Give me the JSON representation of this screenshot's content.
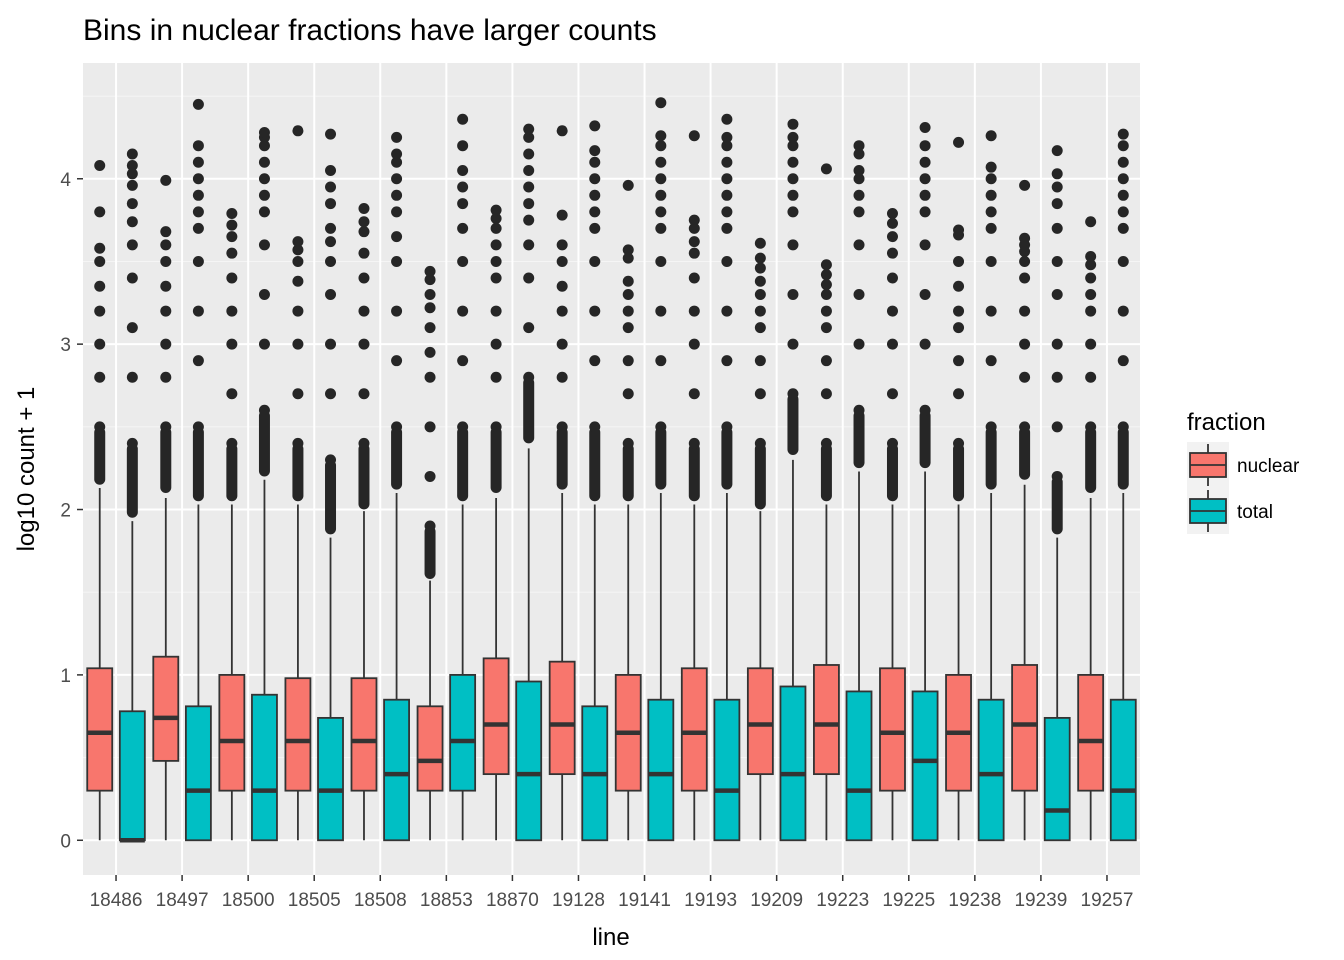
{
  "chart_data": {
    "type": "boxplot",
    "title": "Bins in nuclear fractions have larger counts",
    "xlabel": "line",
    "ylabel": "log10 count + 1",
    "ylim": [
      -0.21,
      4.7
    ],
    "yticks": [
      0,
      1,
      2,
      3,
      4
    ],
    "grid": true,
    "legend": {
      "title": "fraction",
      "position": "right",
      "entries": [
        {
          "name": "nuclear",
          "color": "#F8766D"
        },
        {
          "name": "total",
          "color": "#00BFC4"
        }
      ]
    },
    "categories": [
      "18486",
      "18497",
      "18500",
      "18505",
      "18508",
      "18853",
      "18870",
      "19128",
      "19141",
      "19193",
      "19209",
      "19223",
      "19225",
      "19238",
      "19239",
      "19257"
    ],
    "series": [
      {
        "name": "nuclear",
        "color": "#F8766D",
        "boxes": [
          {
            "min": 0,
            "q1": 0.3,
            "median": 0.65,
            "q3": 1.04,
            "whisker_high": 2.13,
            "outlier_start": 2.15,
            "outliers": [
              2.5,
              2.8,
              3.0,
              3.2,
              3.35,
              3.5,
              3.58,
              3.8,
              4.08
            ]
          },
          {
            "min": 0,
            "q1": 0.48,
            "median": 0.74,
            "q3": 1.11,
            "whisker_high": 2.07,
            "outlier_start": 2.1,
            "outliers": [
              2.5,
              2.8,
              3.0,
              3.2,
              3.35,
              3.5,
              3.6,
              3.68,
              3.99
            ]
          },
          {
            "min": 0,
            "q1": 0.3,
            "median": 0.6,
            "q3": 1.0,
            "whisker_high": 2.03,
            "outlier_start": 2.05,
            "outliers": [
              2.4,
              2.7,
              3.0,
              3.2,
              3.4,
              3.55,
              3.65,
              3.72,
              3.79
            ]
          },
          {
            "min": 0,
            "q1": 0.3,
            "median": 0.6,
            "q3": 0.98,
            "whisker_high": 2.03,
            "outlier_start": 2.05,
            "outliers": [
              2.4,
              2.7,
              3.0,
              3.2,
              3.38,
              3.5,
              3.57,
              3.62,
              4.29
            ]
          },
          {
            "min": 0,
            "q1": 0.3,
            "median": 0.6,
            "q3": 0.98,
            "whisker_high": 1.99,
            "outlier_start": 2.0,
            "outliers": [
              2.4,
              2.7,
              3.0,
              3.2,
              3.4,
              3.55,
              3.68,
              3.74,
              3.82
            ]
          },
          {
            "min": 0,
            "q1": 0.3,
            "median": 0.48,
            "q3": 0.81,
            "whisker_high": 1.57,
            "outlier_start": 1.58,
            "outliers": [
              1.9,
              2.2,
              2.5,
              2.8,
              2.95,
              3.1,
              3.22,
              3.3,
              3.39,
              3.44
            ]
          },
          {
            "min": 0,
            "q1": 0.4,
            "median": 0.7,
            "q3": 1.1,
            "whisker_high": 2.07,
            "outlier_start": 2.1,
            "outliers": [
              2.5,
              2.8,
              3.0,
              3.2,
              3.4,
              3.5,
              3.6,
              3.7,
              3.76,
              3.81
            ]
          },
          {
            "min": 0,
            "q1": 0.4,
            "median": 0.7,
            "q3": 1.08,
            "whisker_high": 2.1,
            "outlier_start": 2.12,
            "outliers": [
              2.5,
              2.8,
              3.0,
              3.2,
              3.35,
              3.5,
              3.6,
              3.78,
              4.29
            ]
          },
          {
            "min": 0,
            "q1": 0.3,
            "median": 0.65,
            "q3": 1.0,
            "whisker_high": 2.03,
            "outlier_start": 2.05,
            "outliers": [
              2.4,
              2.7,
              2.9,
              3.1,
              3.2,
              3.3,
              3.38,
              3.52,
              3.57,
              3.96
            ]
          },
          {
            "min": 0,
            "q1": 0.3,
            "median": 0.65,
            "q3": 1.04,
            "whisker_high": 2.03,
            "outlier_start": 2.05,
            "outliers": [
              2.4,
              2.7,
              3.0,
              3.2,
              3.4,
              3.55,
              3.62,
              3.7,
              3.75,
              4.26
            ]
          },
          {
            "min": 0,
            "q1": 0.4,
            "median": 0.7,
            "q3": 1.04,
            "whisker_high": 1.99,
            "outlier_start": 2.0,
            "outliers": [
              2.4,
              2.7,
              2.9,
              3.1,
              3.2,
              3.3,
              3.38,
              3.46,
              3.52,
              3.61
            ]
          },
          {
            "min": 0,
            "q1": 0.4,
            "median": 0.7,
            "q3": 1.06,
            "whisker_high": 2.03,
            "outlier_start": 2.05,
            "outliers": [
              2.4,
              2.7,
              2.9,
              3.1,
              3.2,
              3.3,
              3.36,
              3.42,
              3.48,
              4.06
            ]
          },
          {
            "min": 0,
            "q1": 0.3,
            "median": 0.65,
            "q3": 1.04,
            "whisker_high": 2.03,
            "outlier_start": 2.05,
            "outliers": [
              2.4,
              2.7,
              3.0,
              3.2,
              3.4,
              3.55,
              3.65,
              3.73,
              3.79
            ]
          },
          {
            "min": 0,
            "q1": 0.3,
            "median": 0.65,
            "q3": 1.0,
            "whisker_high": 2.03,
            "outlier_start": 2.05,
            "outliers": [
              2.4,
              2.7,
              2.9,
              3.1,
              3.2,
              3.35,
              3.5,
              3.66,
              3.69,
              4.22
            ]
          },
          {
            "min": 0,
            "q1": 0.3,
            "median": 0.7,
            "q3": 1.06,
            "whisker_high": 2.15,
            "outlier_start": 2.18,
            "outliers": [
              2.5,
              2.8,
              3.0,
              3.2,
              3.4,
              3.5,
              3.56,
              3.6,
              3.64,
              3.96
            ]
          },
          {
            "min": 0,
            "q1": 0.3,
            "median": 0.6,
            "q3": 1.0,
            "whisker_high": 2.07,
            "outlier_start": 2.1,
            "outliers": [
              2.5,
              2.8,
              3.0,
              3.2,
              3.3,
              3.4,
              3.48,
              3.53,
              3.74
            ]
          }
        ]
      },
      {
        "name": "total",
        "color": "#00BFC4",
        "boxes": [
          {
            "min": 0,
            "q1": 0,
            "median": 0,
            "q3": 0.78,
            "whisker_high": 1.93,
            "outlier_start": 1.95,
            "outliers": [
              2.4,
              2.8,
              3.1,
              3.4,
              3.6,
              3.74,
              3.85,
              3.96,
              4.03,
              4.08,
              4.15
            ]
          },
          {
            "min": 0,
            "q1": 0,
            "median": 0.3,
            "q3": 0.81,
            "whisker_high": 2.03,
            "outlier_start": 2.05,
            "outliers": [
              2.5,
              2.9,
              3.2,
              3.5,
              3.7,
              3.8,
              3.9,
              4.0,
              4.1,
              4.2,
              4.45
            ]
          },
          {
            "min": 0,
            "q1": 0,
            "median": 0.3,
            "q3": 0.88,
            "whisker_high": 2.18,
            "outlier_start": 2.2,
            "outliers": [
              2.6,
              3.0,
              3.3,
              3.6,
              3.8,
              3.9,
              4.0,
              4.1,
              4.2,
              4.25,
              4.28
            ]
          },
          {
            "min": 0,
            "q1": 0,
            "median": 0.3,
            "q3": 0.74,
            "whisker_high": 1.83,
            "outlier_start": 1.85,
            "outliers": [
              2.3,
              2.7,
              3.0,
              3.3,
              3.5,
              3.62,
              3.7,
              3.85,
              3.95,
              4.05,
              4.27
            ]
          },
          {
            "min": 0,
            "q1": 0,
            "median": 0.4,
            "q3": 0.85,
            "whisker_high": 2.1,
            "outlier_start": 2.12,
            "outliers": [
              2.5,
              2.9,
              3.2,
              3.5,
              3.65,
              3.8,
              3.9,
              4.0,
              4.1,
              4.15,
              4.25
            ]
          },
          {
            "min": 0,
            "q1": 0.3,
            "median": 0.6,
            "q3": 1.0,
            "whisker_high": 2.03,
            "outlier_start": 2.05,
            "outliers": [
              2.5,
              2.9,
              3.2,
              3.5,
              3.7,
              3.85,
              3.95,
              4.05,
              4.2,
              4.36
            ]
          },
          {
            "min": 0,
            "q1": 0,
            "median": 0.4,
            "q3": 0.96,
            "whisker_high": 2.37,
            "outlier_start": 2.4,
            "outliers": [
              2.8,
              3.1,
              3.4,
              3.6,
              3.75,
              3.85,
              3.95,
              4.05,
              4.15,
              4.25,
              4.3
            ]
          },
          {
            "min": 0,
            "q1": 0,
            "median": 0.4,
            "q3": 0.81,
            "whisker_high": 2.03,
            "outlier_start": 2.05,
            "outliers": [
              2.5,
              2.9,
              3.2,
              3.5,
              3.7,
              3.8,
              3.9,
              4.0,
              4.1,
              4.17,
              4.32
            ]
          },
          {
            "min": 0,
            "q1": 0,
            "median": 0.4,
            "q3": 0.85,
            "whisker_high": 2.1,
            "outlier_start": 2.12,
            "outliers": [
              2.5,
              2.9,
              3.2,
              3.5,
              3.7,
              3.8,
              3.9,
              4.0,
              4.1,
              4.2,
              4.26,
              4.46
            ]
          },
          {
            "min": 0,
            "q1": 0,
            "median": 0.3,
            "q3": 0.85,
            "whisker_high": 2.1,
            "outlier_start": 2.12,
            "outliers": [
              2.5,
              2.9,
              3.2,
              3.5,
              3.7,
              3.8,
              3.9,
              4.0,
              4.1,
              4.2,
              4.25,
              4.36
            ]
          },
          {
            "min": 0,
            "q1": 0,
            "median": 0.4,
            "q3": 0.93,
            "whisker_high": 2.3,
            "outlier_start": 2.33,
            "outliers": [
              2.7,
              3.0,
              3.3,
              3.6,
              3.8,
              3.9,
              4.0,
              4.1,
              4.2,
              4.25,
              4.33
            ]
          },
          {
            "min": 0,
            "q1": 0,
            "median": 0.3,
            "q3": 0.9,
            "whisker_high": 2.23,
            "outlier_start": 2.25,
            "outliers": [
              2.6,
              3.0,
              3.3,
              3.6,
              3.8,
              3.9,
              4.0,
              4.05,
              4.15,
              4.2
            ]
          },
          {
            "min": 0,
            "q1": 0,
            "median": 0.48,
            "q3": 0.9,
            "whisker_high": 2.23,
            "outlier_start": 2.25,
            "outliers": [
              2.6,
              3.0,
              3.3,
              3.6,
              3.8,
              3.9,
              4.0,
              4.1,
              4.2,
              4.31
            ]
          },
          {
            "min": 0,
            "q1": 0,
            "median": 0.4,
            "q3": 0.85,
            "whisker_high": 2.1,
            "outlier_start": 2.12,
            "outliers": [
              2.5,
              2.9,
              3.2,
              3.5,
              3.7,
              3.8,
              3.9,
              4.0,
              4.07,
              4.26
            ]
          },
          {
            "min": 0,
            "q1": 0,
            "median": 0.18,
            "q3": 0.74,
            "whisker_high": 1.83,
            "outlier_start": 1.85,
            "outliers": [
              2.2,
              2.5,
              2.8,
              3.0,
              3.3,
              3.5,
              3.7,
              3.85,
              3.95,
              4.03,
              4.17
            ]
          },
          {
            "min": 0,
            "q1": 0,
            "median": 0.3,
            "q3": 0.85,
            "whisker_high": 2.1,
            "outlier_start": 2.12,
            "outliers": [
              2.5,
              2.9,
              3.2,
              3.5,
              3.7,
              3.8,
              3.9,
              4.0,
              4.1,
              4.2,
              4.27
            ]
          }
        ]
      }
    ]
  }
}
